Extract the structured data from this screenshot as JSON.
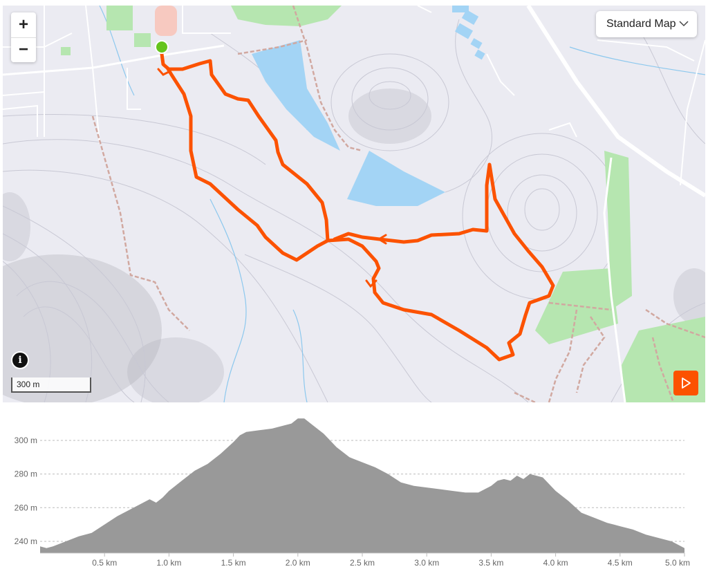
{
  "map": {
    "map_type_label": "Standard Map",
    "scale_label": "300 m",
    "zoom_in_label": "+",
    "zoom_out_label": "−",
    "info_label": "i",
    "colors": {
      "route": "#fc5200",
      "start_marker": "#65c41d",
      "water": "#a3d4f5",
      "park": "#b6e6b0",
      "background": "#ebebf2"
    },
    "icons": {
      "zoom_in": "plus-icon",
      "zoom_out": "minus-icon",
      "info": "info-icon",
      "map_type": "chevron-down-icon",
      "playback": "play-icon"
    }
  },
  "elevation": {
    "y_unit": "m",
    "x_unit": "km",
    "y_ticks": [
      "300 m",
      "280 m",
      "260 m",
      "240 m"
    ],
    "x_ticks": [
      "0.5 km",
      "1.0 km",
      "1.5 km",
      "2.0 km",
      "2.5 km",
      "3.0 km",
      "3.5 km",
      "4.0 km",
      "4.5 km",
      "5.0 km"
    ],
    "fill_color": "#999999"
  },
  "chart_data": {
    "type": "area",
    "xlabel": "",
    "ylabel": "",
    "xlim": [
      0,
      5.0
    ],
    "ylim": [
      233,
      316
    ],
    "grid": true,
    "x": [
      0,
      0.05,
      0.1,
      0.2,
      0.3,
      0.4,
      0.5,
      0.6,
      0.7,
      0.8,
      0.85,
      0.9,
      0.95,
      1.0,
      1.1,
      1.2,
      1.3,
      1.4,
      1.5,
      1.55,
      1.6,
      1.7,
      1.8,
      1.9,
      1.95,
      2.0,
      2.05,
      2.1,
      2.2,
      2.3,
      2.4,
      2.5,
      2.6,
      2.7,
      2.8,
      2.9,
      3.0,
      3.1,
      3.2,
      3.3,
      3.4,
      3.5,
      3.55,
      3.6,
      3.65,
      3.7,
      3.75,
      3.8,
      3.85,
      3.9,
      4.0,
      4.1,
      4.2,
      4.3,
      4.4,
      4.5,
      4.6,
      4.7,
      4.8,
      4.9,
      5.0
    ],
    "y": [
      237,
      236,
      237,
      240,
      243,
      245,
      250,
      255,
      259,
      263,
      265,
      263,
      266,
      270,
      276,
      282,
      286,
      292,
      299,
      303,
      305,
      306,
      307,
      309,
      310,
      313,
      313,
      310,
      304,
      296,
      290,
      287,
      284,
      280,
      275,
      273,
      272,
      271,
      270,
      269,
      269,
      273,
      276,
      277,
      276,
      279,
      277,
      280,
      279,
      278,
      270,
      264,
      257,
      254,
      251,
      249,
      247,
      244,
      242,
      240,
      236
    ]
  }
}
